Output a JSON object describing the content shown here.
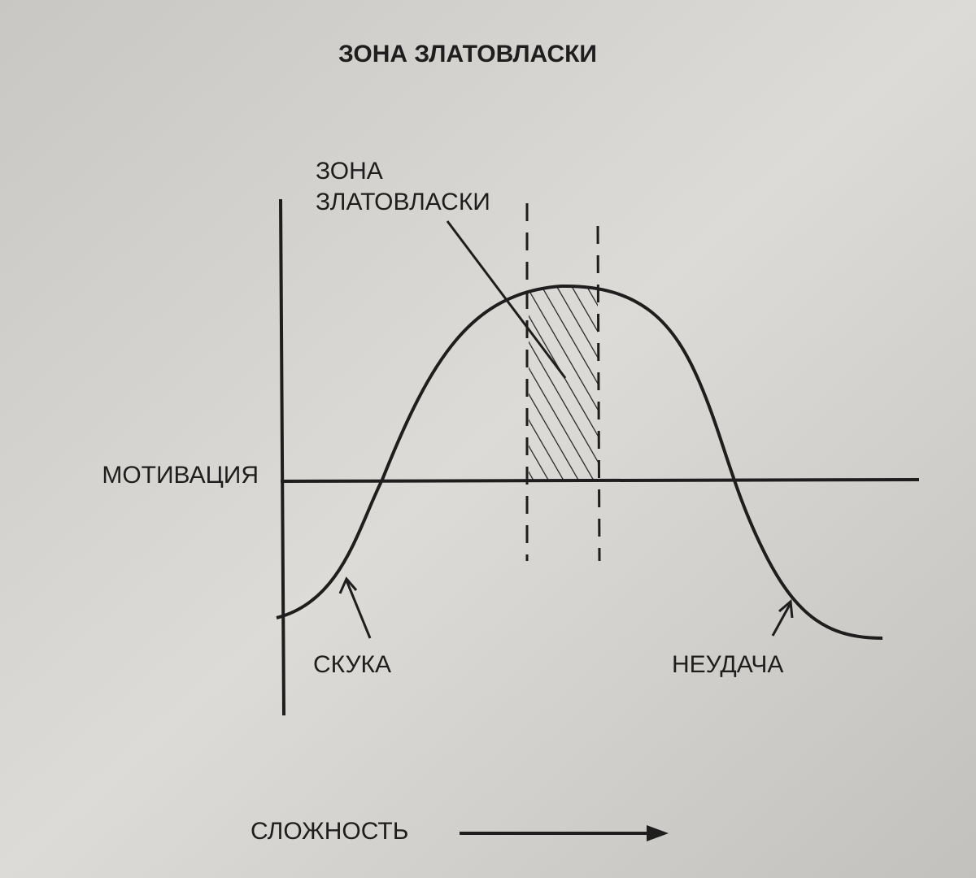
{
  "title": "ЗОНА ЗЛАТОВЛАСКИ",
  "zone_label": [
    "ЗОНА",
    "ЗЛАТОВЛАСКИ"
  ],
  "y_axis_label": "МОТИВАЦИЯ",
  "annotations": {
    "boredom": "СКУКА",
    "failure": "НЕУДАЧА"
  },
  "x_axis_label": "СЛОЖНОСТЬ"
}
